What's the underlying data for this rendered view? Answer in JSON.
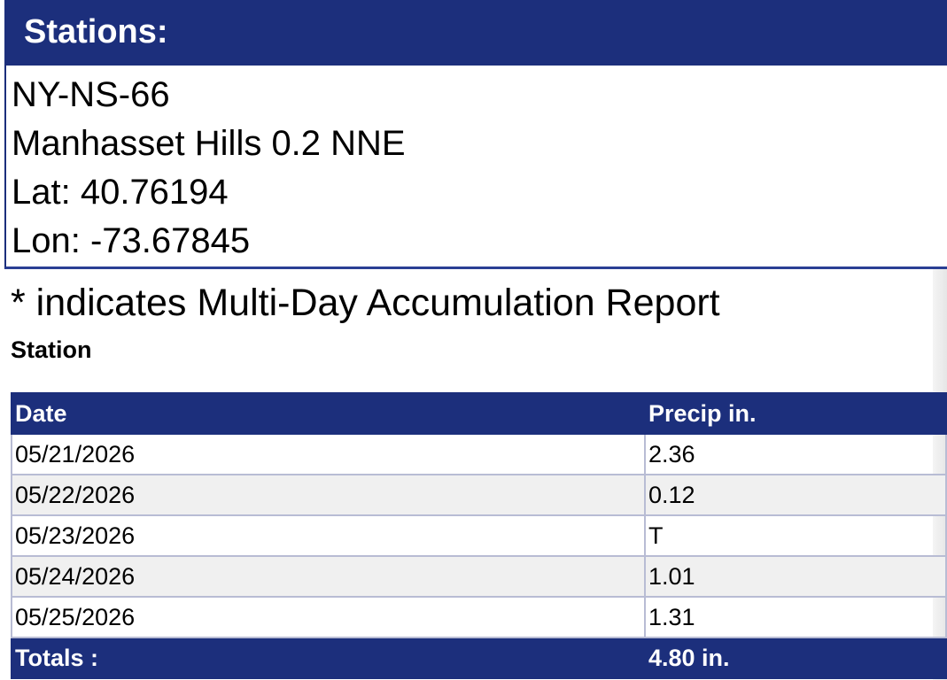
{
  "stations_panel": {
    "title": "Stations:",
    "lines": [
      "NY-NS-66",
      "Manhasset Hills 0.2 NNE",
      "Lat: 40.76194",
      "Lon: -73.67845"
    ]
  },
  "note": "* indicates Multi-Day Accumulation Report",
  "section_label": "Station",
  "table": {
    "headers": [
      "Date",
      "Precip in."
    ],
    "rows": [
      [
        "05/21/2026",
        "2.36"
      ],
      [
        "05/22/2026",
        "0.12"
      ],
      [
        "05/23/2026",
        "T"
      ],
      [
        "05/24/2026",
        "1.01"
      ],
      [
        "05/25/2026",
        "1.31"
      ]
    ],
    "totals": [
      "Totals :",
      "4.80 in."
    ]
  }
}
